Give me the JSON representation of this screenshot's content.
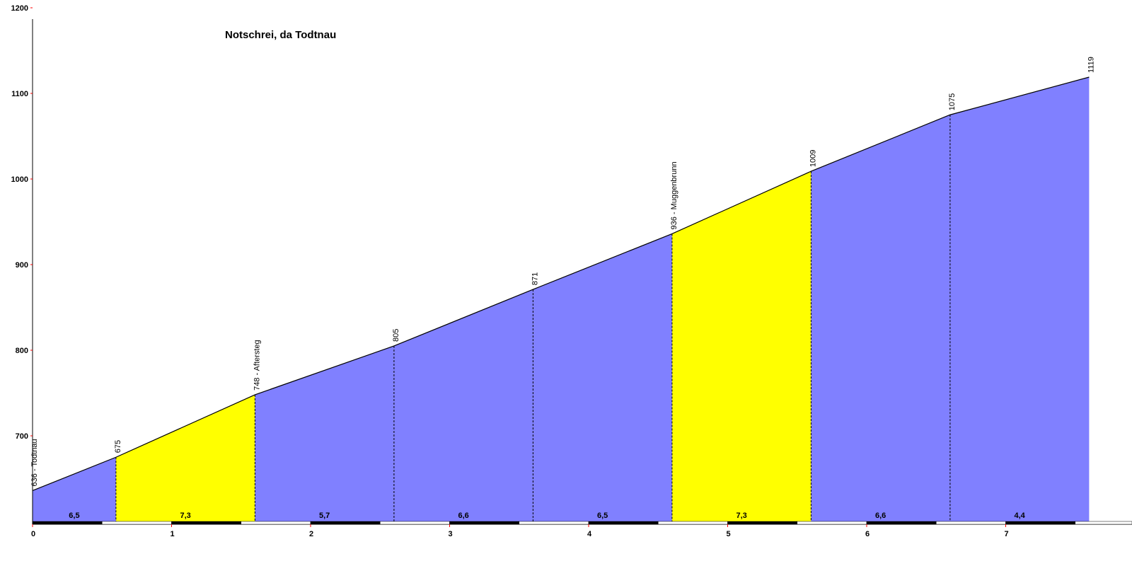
{
  "chart_data": {
    "type": "area",
    "title": "Notschrei, da Todtnau",
    "xlabel": "",
    "ylabel": "",
    "xlim": [
      0,
      7.9
    ],
    "ylim": [
      600,
      1200
    ],
    "x_ticks": [
      "0",
      "1",
      "2",
      "3",
      "4",
      "5",
      "6",
      "7"
    ],
    "y_ticks": [
      "700",
      "800",
      "900",
      "1000",
      "1100",
      "1200"
    ],
    "points": [
      {
        "x": 0,
        "y": 636,
        "label": "636 - Todtnau"
      },
      {
        "x": 0.6,
        "y": 675,
        "label": "675"
      },
      {
        "x": 1.6,
        "y": 748,
        "label": "748 - Aftersteg"
      },
      {
        "x": 2.6,
        "y": 805,
        "label": "805"
      },
      {
        "x": 3.6,
        "y": 871,
        "label": "871"
      },
      {
        "x": 4.6,
        "y": 936,
        "label": "936 - Muggenbrunn"
      },
      {
        "x": 5.6,
        "y": 1009,
        "label": "1009"
      },
      {
        "x": 6.6,
        "y": 1075,
        "label": "1075"
      },
      {
        "x": 7.6,
        "y": 1119,
        "label": "1119"
      }
    ],
    "segments": [
      {
        "grade": "6,5",
        "color": "#8080ff"
      },
      {
        "grade": "7,3",
        "color": "#ffff00"
      },
      {
        "grade": "5,7",
        "color": "#8080ff"
      },
      {
        "grade": "6,6",
        "color": "#8080ff"
      },
      {
        "grade": "6,5",
        "color": "#8080ff"
      },
      {
        "grade": "7,3",
        "color": "#ffff00"
      },
      {
        "grade": "6,6",
        "color": "#8080ff"
      },
      {
        "grade": "4,4",
        "color": "#8080ff"
      }
    ],
    "colors": {
      "axis": "#000000",
      "tick": "#ff0000",
      "outline": "#000000"
    }
  }
}
